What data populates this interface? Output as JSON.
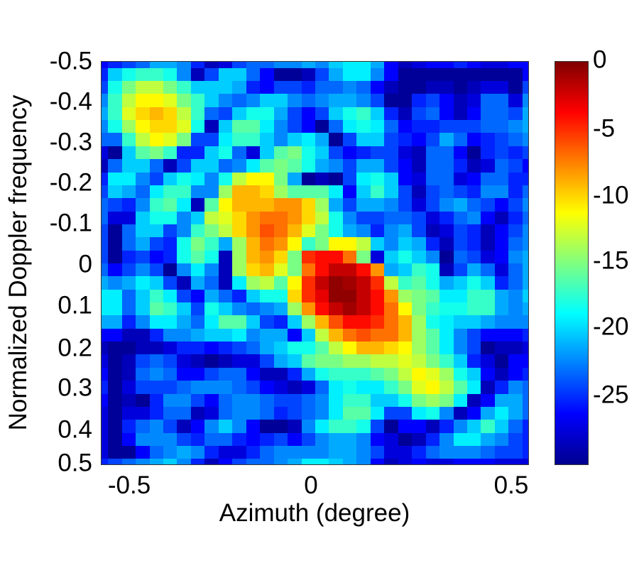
{
  "chart_data": {
    "type": "heatmap",
    "title": "",
    "xlabel": "Azimuth (degree)",
    "ylabel": "Normalized Doppler frequency",
    "xlim": [
      -0.5,
      0.5
    ],
    "ylim": [
      -0.5,
      0.5
    ],
    "y_direction": "reversed (−0.5 at top, 0.5 at bottom)",
    "x_ticks": [
      "-0.5",
      "0",
      "0.5"
    ],
    "y_ticks": [
      "-0.5",
      "-0.4",
      "-0.3",
      "-0.2",
      "-0.1",
      "0",
      "0.1",
      "0.2",
      "0.3",
      "0.4",
      "0.5"
    ],
    "colormap": "jet",
    "colorbar": {
      "range": [
        -29.7,
        0
      ],
      "ticks": [
        "0",
        "-5",
        "-10",
        "-15",
        "-20",
        "-25"
      ],
      "position": "right"
    },
    "grid": false,
    "rows": 32,
    "cols": 32,
    "description": "Angle-Doppler clutter/power spectrum in dB. Peak (~0 dB) near azimuth 0.08, Doppler 0.05; secondary ridge running from (-0.15,-0.15) to (0.3,0.3); secondary blob near (-0.4,-0.4).",
    "values": [
      [
        -26,
        -25,
        -24,
        -23,
        -21,
        -21,
        -22,
        -25,
        -28,
        -27,
        -24,
        -23,
        -23,
        -22,
        -22,
        -21,
        -22,
        -20,
        -19,
        -19,
        -21,
        -26,
        -28,
        -27,
        -26,
        -26,
        -25,
        -26,
        -27,
        -27,
        -26,
        -26
      ],
      [
        -25,
        -20,
        -18,
        -17,
        -17,
        -18,
        -22,
        -28,
        -24,
        -20,
        -20,
        -23,
        -26,
        -29,
        -29,
        -28,
        -24,
        -21,
        -19,
        -19,
        -22,
        -26,
        -29,
        -29,
        -29,
        -29,
        -29,
        -29,
        -29,
        -29,
        -29,
        -26
      ],
      [
        -24,
        -18,
        -15,
        -13,
        -13,
        -15,
        -17,
        -20,
        -20,
        -20,
        -21,
        -25,
        -26,
        -24,
        -24,
        -25,
        -23,
        -23,
        -22,
        -23,
        -26,
        -28,
        -29,
        -29,
        -28,
        -28,
        -29,
        -28,
        -27,
        -27,
        -29,
        -24
      ],
      [
        -22,
        -17,
        -13,
        -11,
        -11,
        -12,
        -15,
        -17,
        -20,
        -22,
        -23,
        -22,
        -20,
        -20,
        -22,
        -23,
        -22,
        -21,
        -21,
        -22,
        -24,
        -29,
        -29,
        -25,
        -24,
        -26,
        -28,
        -27,
        -23,
        -23,
        -27,
        -22
      ],
      [
        -21,
        -17,
        -12,
        -10,
        -9,
        -10,
        -13,
        -17,
        -23,
        -24,
        -20,
        -18,
        -18,
        -21,
        -24,
        -26,
        -24,
        -20,
        -18,
        -17,
        -20,
        -25,
        -28,
        -24,
        -23,
        -26,
        -28,
        -26,
        -23,
        -23,
        -24,
        -21
      ],
      [
        -22,
        -18,
        -14,
        -11,
        -10,
        -10,
        -12,
        -18,
        -28,
        -20,
        -16,
        -16,
        -19,
        -22,
        -24,
        -26,
        -29,
        -23,
        -19,
        -18,
        -19,
        -23,
        -26,
        -25,
        -25,
        -24,
        -24,
        -24,
        -23,
        -23,
        -22,
        -21
      ],
      [
        -23,
        -23,
        -17,
        -13,
        -11,
        -12,
        -15,
        -24,
        -24,
        -19,
        -17,
        -17,
        -20,
        -22,
        -20,
        -19,
        -21,
        -29,
        -24,
        -20,
        -20,
        -24,
        -25,
        -26,
        -24,
        -21,
        -23,
        -26,
        -25,
        -24,
        -23,
        -22
      ],
      [
        -27,
        -29,
        -20,
        -16,
        -15,
        -17,
        -25,
        -25,
        -20,
        -18,
        -23,
        -27,
        -20,
        -16,
        -15,
        -18,
        -20,
        -24,
        -26,
        -25,
        -24,
        -24,
        -27,
        -28,
        -23,
        -23,
        -26,
        -29,
        -25,
        -24,
        -25,
        -24
      ],
      [
        -28,
        -23,
        -20,
        -20,
        -23,
        -28,
        -24,
        -20,
        -20,
        -23,
        -22,
        -19,
        -16,
        -15,
        -16,
        -18,
        -21,
        -22,
        -24,
        -21,
        -21,
        -24,
        -26,
        -28,
        -23,
        -23,
        -25,
        -28,
        -27,
        -23,
        -24,
        -26
      ],
      [
        -25,
        -19,
        -19,
        -22,
        -24,
        -20,
        -18,
        -19,
        -22,
        -18,
        -13,
        -11,
        -11,
        -15,
        -21,
        -29,
        -28,
        -29,
        -24,
        -19,
        -18,
        -20,
        -26,
        -27,
        -23,
        -23,
        -27,
        -26,
        -23,
        -23,
        -25,
        -25
      ],
      [
        -24,
        -20,
        -21,
        -23,
        -19,
        -17,
        -17,
        -22,
        -22,
        -14,
        -9,
        -9,
        -10,
        -14,
        -16,
        -16,
        -16,
        -19,
        -26,
        -20,
        -17,
        -20,
        -24,
        -28,
        -24,
        -23,
        -24,
        -25,
        -22,
        -22,
        -25,
        -23
      ],
      [
        -23,
        -24,
        -25,
        -22,
        -17,
        -16,
        -19,
        -28,
        -16,
        -11,
        -9,
        -9,
        -9,
        -8,
        -8,
        -10,
        -14,
        -21,
        -24,
        -21,
        -21,
        -22,
        -24,
        -27,
        -24,
        -22,
        -21,
        -23,
        -24,
        -26,
        -24,
        -22
      ],
      [
        -23,
        -27,
        -27,
        -20,
        -18,
        -18,
        -22,
        -20,
        -13,
        -12,
        -10,
        -8,
        -7,
        -7,
        -8,
        -10,
        -13,
        -18,
        -22,
        -24,
        -24,
        -23,
        -23,
        -24,
        -27,
        -25,
        -23,
        -22,
        -26,
        -28,
        -25,
        -23
      ],
      [
        -24,
        -29,
        -23,
        -20,
        -20,
        -24,
        -22,
        -17,
        -15,
        -13,
        -10,
        -8,
        -6,
        -7,
        -9,
        -12,
        -15,
        -18,
        -21,
        -22,
        -25,
        -22,
        -21,
        -24,
        -28,
        -27,
        -24,
        -25,
        -28,
        -26,
        -24,
        -22
      ],
      [
        -24,
        -29,
        -23,
        -21,
        -24,
        -25,
        -18,
        -15,
        -17,
        -21,
        -14,
        -9,
        -7,
        -8,
        -11,
        -17,
        -15,
        -11,
        -11,
        -13,
        -20,
        -22,
        -20,
        -21,
        -25,
        -28,
        -24,
        -25,
        -28,
        -26,
        -23,
        -22
      ],
      [
        -24,
        -29,
        -25,
        -24,
        -26,
        -25,
        -18,
        -16,
        -18,
        -28,
        -14,
        -9,
        -8,
        -10,
        -15,
        -5,
        -4,
        -4,
        -7,
        -15,
        -27,
        -20,
        -18,
        -20,
        -22,
        -29,
        -23,
        -24,
        -27,
        -26,
        -22,
        -21
      ],
      [
        -23,
        -26,
        -24,
        -22,
        -24,
        -29,
        -22,
        -19,
        -22,
        -28,
        -14,
        -10,
        -9,
        -12,
        -15,
        -7,
        -4,
        -2,
        -2,
        -4,
        -8,
        -21,
        -20,
        -17,
        -18,
        -28,
        -24,
        -21,
        -23,
        -27,
        -23,
        -21
      ],
      [
        -21,
        -22,
        -21,
        -19,
        -20,
        -24,
        -28,
        -21,
        -23,
        -28,
        -19,
        -14,
        -13,
        -16,
        -11,
        -5,
        -2,
        -0.5,
        -1,
        -2,
        -5,
        -13,
        -17,
        -16,
        -18,
        -21,
        -20,
        -18,
        -20,
        -25,
        -23,
        -21
      ],
      [
        -19,
        -19,
        -23,
        -20,
        -17,
        -19,
        -24,
        -26,
        -21,
        -23,
        -25,
        -20,
        -18,
        -18,
        -10,
        -5,
        -3,
        -0.5,
        -0.5,
        -2,
        -4,
        -8,
        -14,
        -15,
        -16,
        -19,
        -19,
        -17,
        -17,
        -21,
        -22,
        -20
      ],
      [
        -19,
        -19,
        -23,
        -20,
        -16,
        -17,
        -20,
        -24,
        -18,
        -20,
        -22,
        -23,
        -22,
        -21,
        -14,
        -8,
        -4,
        -2,
        -1,
        -2,
        -4,
        -7,
        -11,
        -15,
        -17,
        -18,
        -18,
        -17,
        -17,
        -21,
        -22,
        -21
      ],
      [
        -21,
        -21,
        -25,
        -22,
        -19,
        -19,
        -21,
        -23,
        -19,
        -16,
        -16,
        -20,
        -24,
        -25,
        -20,
        -14,
        -9,
        -6,
        -4,
        -4,
        -5,
        -7,
        -9,
        -14,
        -18,
        -19,
        -20,
        -20,
        -21,
        -22,
        -22,
        -22
      ],
      [
        -26,
        -26,
        -28,
        -28,
        -25,
        -22,
        -22,
        -21,
        -20,
        -20,
        -19,
        -22,
        -21,
        -21,
        -26,
        -20,
        -13,
        -9,
        -7,
        -6,
        -7,
        -7,
        -9,
        -14,
        -16,
        -19,
        -22,
        -24,
        -26,
        -26,
        -26,
        -25
      ],
      [
        -28,
        -29,
        -29,
        -28,
        -28,
        -27,
        -25,
        -25,
        -26,
        -25,
        -24,
        -23,
        -21,
        -20,
        -18,
        -18,
        -16,
        -13,
        -11,
        -9,
        -9,
        -10,
        -11,
        -14,
        -16,
        -19,
        -22,
        -24,
        -29,
        -28,
        -28,
        -27
      ],
      [
        -27,
        -29,
        -28,
        -24,
        -23,
        -24,
        -27,
        -28,
        -29,
        -28,
        -27,
        -27,
        -24,
        -21,
        -20,
        -16,
        -15,
        -15,
        -14,
        -14,
        -13,
        -13,
        -12,
        -13,
        -15,
        -17,
        -20,
        -25,
        -27,
        -29,
        -26,
        -26
      ],
      [
        -26,
        -29,
        -28,
        -23,
        -22,
        -23,
        -26,
        -26,
        -24,
        -23,
        -23,
        -26,
        -28,
        -28,
        -25,
        -21,
        -18,
        -17,
        -17,
        -17,
        -16,
        -15,
        -13,
        -11,
        -12,
        -14,
        -18,
        -20,
        -26,
        -28,
        -26,
        -25
      ],
      [
        -25,
        -29,
        -27,
        -24,
        -24,
        -24,
        -23,
        -22,
        -22,
        -22,
        -23,
        -24,
        -26,
        -27,
        -28,
        -27,
        -23,
        -19,
        -18,
        -19,
        -19,
        -17,
        -15,
        -12,
        -11,
        -13,
        -16,
        -19,
        -28,
        -25,
        -22,
        -23
      ],
      [
        -26,
        -29,
        -28,
        -29,
        -25,
        -22,
        -22,
        -24,
        -26,
        -23,
        -22,
        -22,
        -23,
        -24,
        -24,
        -23,
        -22,
        -19,
        -17,
        -17,
        -20,
        -20,
        -18,
        -15,
        -14,
        -15,
        -19,
        -28,
        -26,
        -21,
        -21,
        -23
      ],
      [
        -27,
        -29,
        -27,
        -27,
        -25,
        -23,
        -23,
        -28,
        -27,
        -23,
        -22,
        -22,
        -23,
        -25,
        -24,
        -23,
        -22,
        -19,
        -16,
        -16,
        -19,
        -24,
        -24,
        -19,
        -18,
        -22,
        -28,
        -26,
        -21,
        -19,
        -21,
        -23
      ],
      [
        -27,
        -29,
        -25,
        -23,
        -22,
        -24,
        -28,
        -26,
        -22,
        -20,
        -22,
        -26,
        -29,
        -29,
        -28,
        -22,
        -19,
        -17,
        -17,
        -18,
        -24,
        -29,
        -26,
        -26,
        -28,
        -25,
        -22,
        -20,
        -17,
        -20,
        -23,
        -25
      ],
      [
        -27,
        -29,
        -26,
        -22,
        -22,
        -22,
        -24,
        -25,
        -23,
        -23,
        -25,
        -26,
        -25,
        -24,
        -26,
        -24,
        -22,
        -21,
        -21,
        -22,
        -26,
        -27,
        -29,
        -28,
        -25,
        -22,
        -19,
        -19,
        -21,
        -22,
        -24,
        -25
      ],
      [
        -27,
        -29,
        -29,
        -26,
        -23,
        -22,
        -21,
        -22,
        -25,
        -27,
        -27,
        -25,
        -23,
        -22,
        -22,
        -22,
        -22,
        -21,
        -21,
        -22,
        -24,
        -27,
        -27,
        -25,
        -23,
        -22,
        -22,
        -22,
        -23,
        -24,
        -24,
        -25
      ],
      [
        -25,
        -24,
        -23,
        -22,
        -21,
        -20,
        -22,
        -25,
        -28,
        -26,
        -24,
        -23,
        -23,
        -22,
        -21,
        -19,
        -19,
        -20,
        -21,
        -22,
        -26,
        -28,
        -27,
        -26,
        -27,
        -27,
        -26,
        -26,
        -26,
        -27,
        -27,
        -27
      ]
    ]
  }
}
